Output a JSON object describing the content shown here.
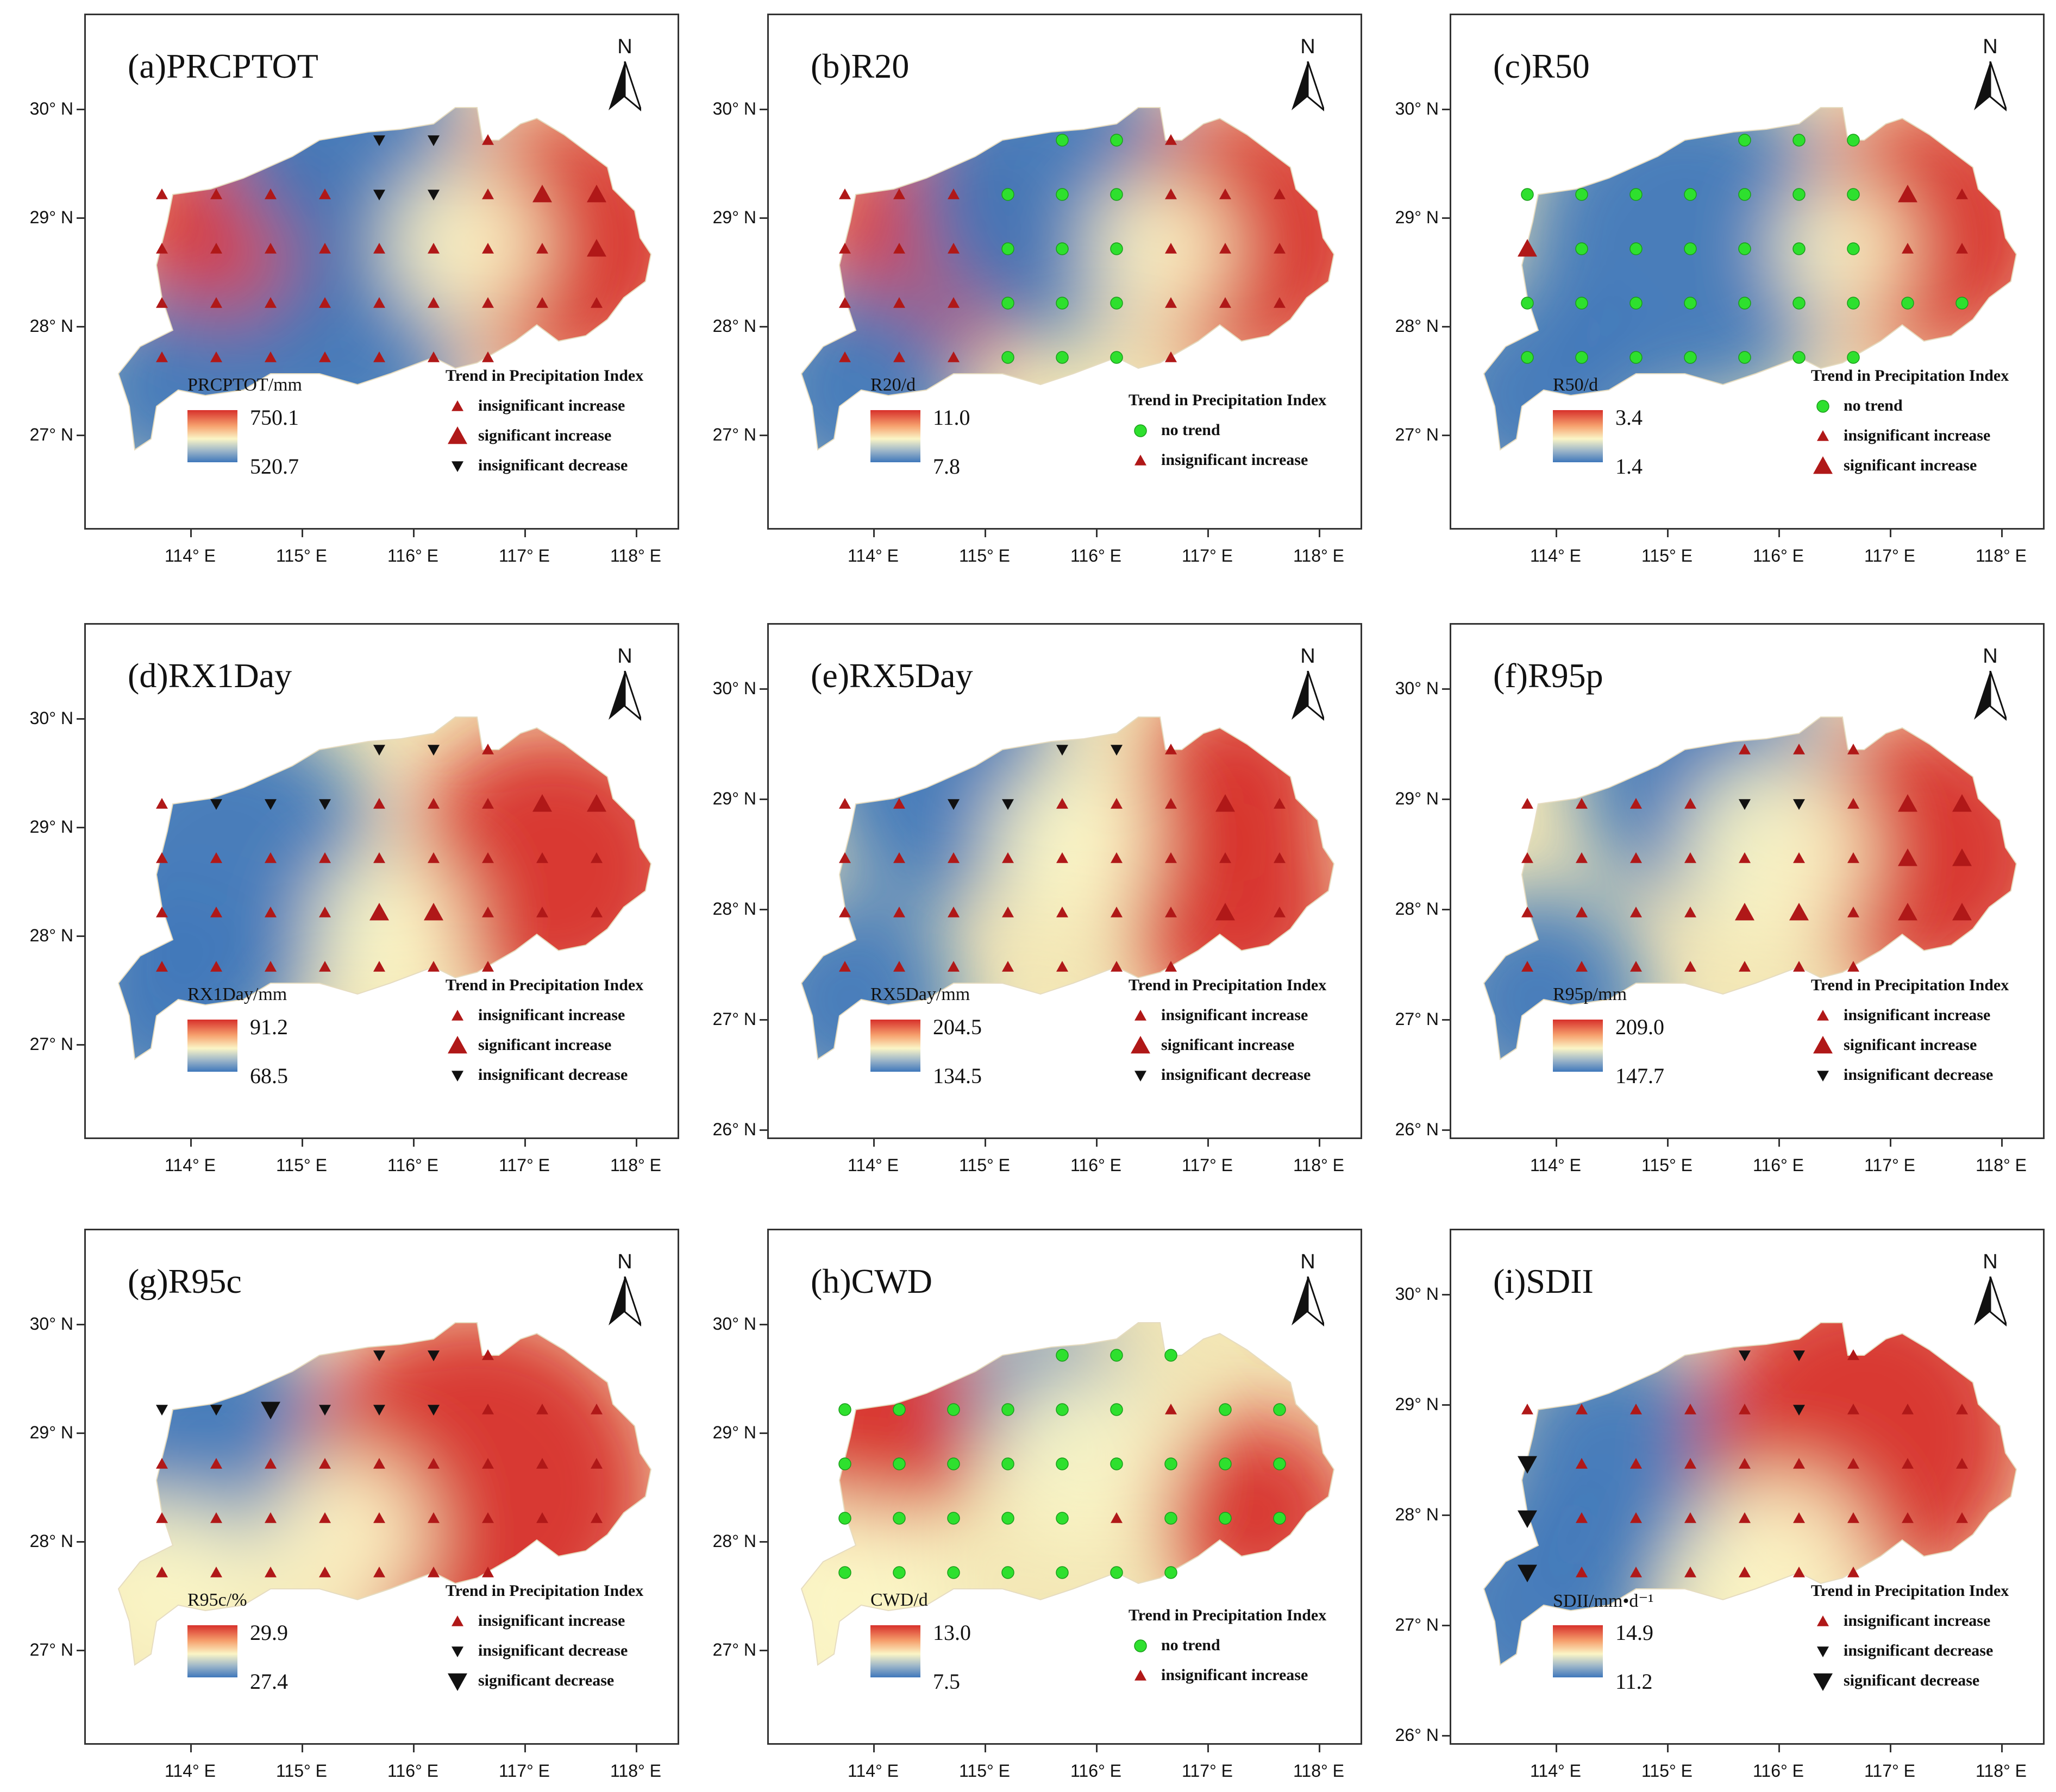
{
  "figure": {
    "lat_ticks": [
      "30° N",
      "29° N",
      "28° N",
      "27° N",
      "26° N"
    ],
    "lon_ticks": [
      "114° E",
      "115° E",
      "116° E",
      "117° E",
      "118° E"
    ],
    "north_label": "N",
    "trend_title": "Trend in Precipitation Index",
    "trend_labels": {
      "insig_inc": "insignificant increase",
      "sig_inc": "significant increase",
      "insig_dec": "insignificant decrease",
      "sig_dec": "significant decrease",
      "no_trend": "no trend"
    },
    "colors": {
      "high": "#d7302b",
      "mid": "#fbf5c6",
      "low": "#3f77bb",
      "triangle": "#b01818",
      "no_trend": "#2ee02e",
      "dec": "#111111"
    }
  },
  "panels": [
    {
      "id": "a",
      "title": "(a)PRCPTOT",
      "legend_title": "PRCPTOT/mm",
      "max": "750.1",
      "min": "520.7",
      "trends": [
        "insig_inc",
        "sig_inc",
        "insig_dec"
      ]
    },
    {
      "id": "b",
      "title": "(b)R20",
      "legend_title": "R20/d",
      "max": "11.0",
      "min": "7.8",
      "trends": [
        "no_trend",
        "insig_inc"
      ]
    },
    {
      "id": "c",
      "title": "(c)R50",
      "legend_title": "R50/d",
      "max": "3.4",
      "min": "1.4",
      "trends": [
        "no_trend",
        "insig_inc",
        "sig_inc"
      ]
    },
    {
      "id": "d",
      "title": "(d)RX1Day",
      "legend_title": "RX1Day/mm",
      "max": "91.2",
      "min": "68.5",
      "trends": [
        "insig_inc",
        "sig_inc",
        "insig_dec"
      ]
    },
    {
      "id": "e",
      "title": "(e)RX5Day",
      "legend_title": "RX5Day/mm",
      "max": "204.5",
      "min": "134.5",
      "trends": [
        "insig_inc",
        "sig_inc",
        "insig_dec"
      ]
    },
    {
      "id": "f",
      "title": "(f)R95p",
      "legend_title": "R95p/mm",
      "max": "209.0",
      "min": "147.7",
      "trends": [
        "insig_inc",
        "sig_inc",
        "insig_dec"
      ]
    },
    {
      "id": "g",
      "title": "(g)R95c",
      "legend_title": "R95c/%",
      "max": "29.9",
      "min": "27.4",
      "trends": [
        "insig_inc",
        "insig_dec",
        "sig_dec"
      ]
    },
    {
      "id": "h",
      "title": "(h)CWD",
      "legend_title": "CWD/d",
      "max": "13.0",
      "min": "7.5",
      "trends": [
        "no_trend",
        "insig_inc"
      ]
    },
    {
      "id": "i",
      "title": "(i)SDII",
      "legend_title": "SDII/mm•d⁻¹",
      "max": "14.9",
      "min": "11.2",
      "trends": [
        "insig_inc",
        "insig_dec",
        "sig_dec"
      ]
    }
  ]
}
